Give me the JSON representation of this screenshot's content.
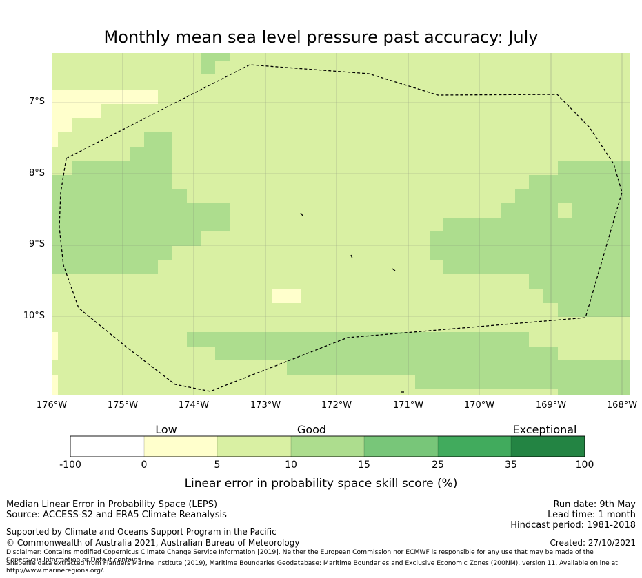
{
  "title": "Monthly mean sea level pressure past accuracy: July",
  "map": {
    "y_ticks": [
      "7°S",
      "8°S",
      "9°S",
      "10°S"
    ],
    "x_ticks": [
      "176°W",
      "175°W",
      "174°W",
      "173°W",
      "172°W",
      "171°W",
      "170°W",
      "169°W",
      "168°W"
    ],
    "colors": {
      "low": "#ffffcc",
      "good": "#d9f0a3",
      "good_plus": "#addd8e",
      "boundary": "#000000"
    }
  },
  "colorbar": {
    "categories": [
      "Low",
      "Good",
      "Exceptional"
    ],
    "ticks": [
      "-100",
      "0",
      "5",
      "10",
      "15",
      "25",
      "35",
      "100"
    ],
    "colors": [
      "#ffffff",
      "#ffffcc",
      "#d9f0a3",
      "#addd8e",
      "#78c679",
      "#41ab5d",
      "#238443"
    ],
    "label": "Linear error in probability space skill score (%)"
  },
  "footer": {
    "left_line1": "Median Linear Error in Probability Space (LEPS)",
    "left_line2": "Source: ACCESS-S2 and ERA5 Climate Reanalysis",
    "supported": "Supported by Climate and Oceans Support Program in the Pacific",
    "copyright": "© Commonwealth of Australia 2021, Australian Bureau of Meteorology",
    "run_date": "Run date: 9th May",
    "lead_time": "Lead time: 1 month",
    "hindcast": "Hindcast period: 1981-2018",
    "created": "Created: 27/10/2021",
    "disclaimer": "Disclaimer: Contains modified Copernicus Climate Change Service Information [2019]. Neither the European Commission nor ECMWF is responsible for any use that may be made of the Copernicus Information or Data it contains.",
    "shapefile": "Shapefile data extracted from Flanders Marine Institute (2019), Maritime Boundaries Geodatabase: Maritime Boundaries and Exclusive Economic Zones (200NM), version 11. Available online at http://www.marineregions.org/."
  }
}
